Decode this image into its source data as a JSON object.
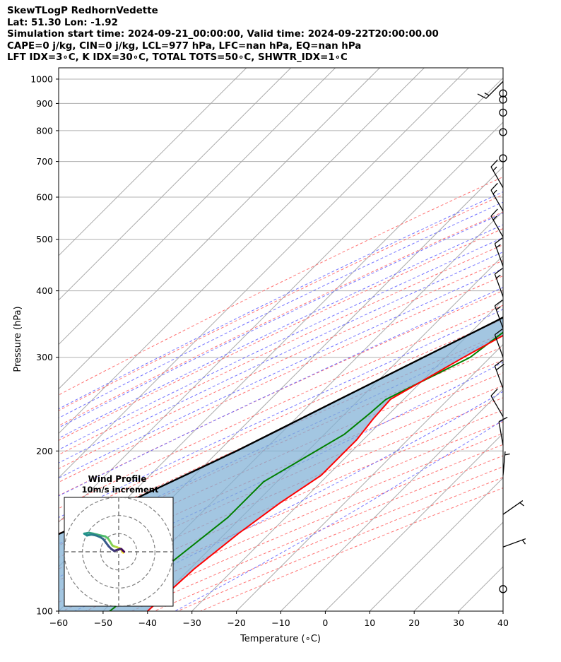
{
  "title_lines": [
    "SkewTLogP RedhornVedette",
    "Lat: 51.30   Lon: -1.92",
    "Simulation start time: 2024-09-21_00:00:00, Valid time: 2024-09-22T20:00:00.00",
    "CAPE=0 j/kg, CIN=0 j/kg, LCL=977 hPa, LFC=nan hPa, EQ=nan hPa",
    "LFT IDX=3∘C, K IDX=30∘C, TOTAL TOTS=50∘C, SHWTR_IDX=1∘C"
  ],
  "chart_data": {
    "type": "skewt-logp",
    "xlabel": "Temperature (∘C)",
    "ylabel": "Pressure (hPa)",
    "xlim": [
      -60,
      40
    ],
    "ylim": [
      1050,
      100
    ],
    "x_ticks": [
      -60,
      -50,
      -40,
      -30,
      -20,
      -10,
      0,
      10,
      20,
      30,
      40
    ],
    "x_tick_labels": [
      "−60",
      "−50",
      "−40",
      "−30",
      "−20",
      "−10",
      "0",
      "10",
      "20",
      "30",
      "40"
    ],
    "y_ticks": [
      1000,
      900,
      800,
      700,
      600,
      500,
      400,
      300,
      200,
      100
    ],
    "y_tick_labels": [
      "1000",
      "900",
      "800",
      "700",
      "600",
      "500",
      "400",
      "300",
      "200",
      "100"
    ],
    "grid": true,
    "colors": {
      "temperature": "#ff0000",
      "dewpoint": "#008000",
      "parcel": "#000000",
      "cape_fill": "#7fb0d5",
      "dry_adiabats": "#ff6666",
      "moist_adiabats": "#6666ff",
      "mixing_ratio": "#9933cc",
      "isotherms": "#aaaaaa"
    },
    "series": [
      {
        "key": "temperature",
        "points": [
          [
            15.6,
            990
          ],
          [
            14.8,
            950
          ],
          [
            14.4,
            900
          ],
          [
            13.3,
            850
          ],
          [
            12.0,
            800
          ],
          [
            10.1,
            750
          ],
          [
            8.0,
            700
          ],
          [
            5.0,
            650
          ],
          [
            2.0,
            600
          ],
          [
            -1.5,
            550
          ],
          [
            -5.0,
            500
          ],
          [
            -9.5,
            450
          ],
          [
            -14.0,
            400
          ],
          [
            -19.5,
            350
          ],
          [
            -26.0,
            300
          ],
          [
            -33.0,
            250
          ],
          [
            -32.5,
            230
          ],
          [
            -31.5,
            210
          ],
          [
            -31.5,
            200
          ],
          [
            -31.5,
            180
          ],
          [
            -34.5,
            160
          ],
          [
            -37.0,
            140
          ],
          [
            -39.0,
            120
          ],
          [
            -40.0,
            100
          ]
        ]
      },
      {
        "key": "dewpoint",
        "points": [
          [
            14.3,
            990
          ],
          [
            14.1,
            960
          ],
          [
            13.8,
            900
          ],
          [
            11.8,
            850
          ],
          [
            9.5,
            800
          ],
          [
            6.5,
            750
          ],
          [
            3.8,
            700
          ],
          [
            2.0,
            650
          ],
          [
            -0.5,
            600
          ],
          [
            -4.0,
            550
          ],
          [
            -7.5,
            500
          ],
          [
            -17.0,
            450
          ],
          [
            -23.5,
            400
          ],
          [
            -24.0,
            380
          ],
          [
            -22.0,
            350
          ],
          [
            -24.5,
            300
          ],
          [
            -34.0,
            250
          ],
          [
            -34.5,
            235
          ],
          [
            -35.5,
            215
          ],
          [
            -43.0,
            175
          ],
          [
            -43.0,
            150
          ],
          [
            -48.5,
            100
          ]
        ]
      },
      {
        "key": "parcel",
        "points": [
          [
            14.8,
            990
          ],
          [
            13.8,
            950
          ],
          [
            12.0,
            900
          ],
          [
            10.0,
            850
          ],
          [
            7.8,
            800
          ],
          [
            5.5,
            750
          ],
          [
            3.0,
            700
          ],
          [
            0.1,
            650
          ],
          [
            -3.0,
            600
          ],
          [
            -6.5,
            550
          ],
          [
            -10.5,
            500
          ],
          [
            -15.0,
            450
          ],
          [
            -20.5,
            400
          ],
          [
            -27.0,
            350
          ],
          [
            -35.0,
            300
          ],
          [
            -44.5,
            250
          ],
          [
            -56.0,
            200
          ],
          [
            -69.0,
            160
          ],
          [
            -84.0,
            125
          ],
          [
            -99.0,
            100
          ]
        ]
      }
    ],
    "wind_barbs": [
      {
        "p": 990,
        "speed": 15,
        "dir": 225
      },
      {
        "p": 940,
        "speed": 0,
        "dir": 0
      },
      {
        "p": 915,
        "speed": 0,
        "dir": 0
      },
      {
        "p": 865,
        "speed": 0,
        "dir": 0
      },
      {
        "p": 795,
        "speed": 0,
        "dir": 0
      },
      {
        "p": 710,
        "speed": 0,
        "dir": 0
      },
      {
        "p": 625,
        "speed": 15,
        "dir": 330
      },
      {
        "p": 565,
        "speed": 15,
        "dir": 330
      },
      {
        "p": 505,
        "speed": 15,
        "dir": 330
      },
      {
        "p": 445,
        "speed": 15,
        "dir": 340
      },
      {
        "p": 390,
        "speed": 15,
        "dir": 340
      },
      {
        "p": 340,
        "speed": 15,
        "dir": 340
      },
      {
        "p": 300,
        "speed": 10,
        "dir": 340
      },
      {
        "p": 262,
        "speed": 20,
        "dir": 340
      },
      {
        "p": 232,
        "speed": 10,
        "dir": 330
      },
      {
        "p": 205,
        "speed": 10,
        "dir": 350
      },
      {
        "p": 180,
        "speed": 5,
        "dir": 5
      },
      {
        "p": 152,
        "speed": 5,
        "dir": 55
      },
      {
        "p": 132,
        "speed": 5,
        "dir": 70
      },
      {
        "p": 110,
        "speed": 0,
        "dir": 0
      }
    ],
    "hodograph": {
      "title": "Wind Profile",
      "subtitle": "10m/s increment",
      "rings": [
        10,
        20,
        30
      ],
      "range": 30,
      "colormap": "viridis",
      "points": [
        [
          2.5,
          -0.5
        ],
        [
          1.5,
          1.0
        ],
        [
          0.5,
          2.0
        ],
        [
          -1.0,
          2.5
        ],
        [
          -2.5,
          3.0
        ],
        [
          -3.5,
          3.5
        ],
        [
          -5.0,
          6.0
        ],
        [
          -6.0,
          7.5
        ],
        [
          -7.5,
          8.5
        ],
        [
          -10.0,
          9.0
        ],
        [
          -12.0,
          9.5
        ],
        [
          -14.0,
          10.0
        ],
        [
          -16.5,
          10.5
        ],
        [
          -19.0,
          10.0
        ],
        [
          -17.5,
          9.0
        ],
        [
          -15.0,
          9.5
        ],
        [
          -12.5,
          9.0
        ],
        [
          -10.0,
          8.0
        ],
        [
          -8.5,
          7.0
        ],
        [
          -7.0,
          5.0
        ],
        [
          -5.5,
          3.0
        ],
        [
          -4.0,
          1.5
        ],
        [
          -2.5,
          0.5
        ],
        [
          -1.0,
          1.0
        ],
        [
          0.5,
          1.5
        ],
        [
          1.5,
          1.5
        ],
        [
          2.5,
          0.5
        ],
        [
          3.0,
          0.0
        ]
      ]
    }
  }
}
